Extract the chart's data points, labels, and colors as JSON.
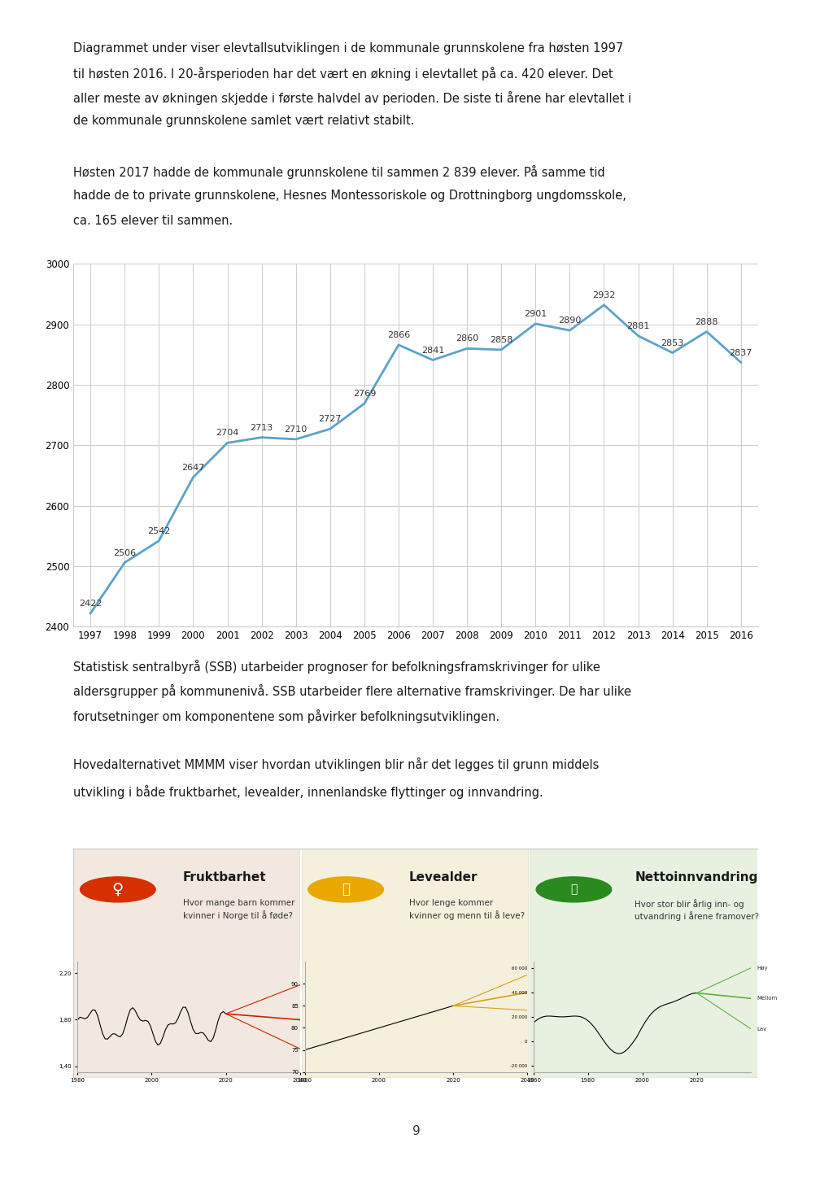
{
  "years": [
    1997,
    1998,
    1999,
    2000,
    2001,
    2002,
    2003,
    2004,
    2005,
    2006,
    2007,
    2008,
    2009,
    2010,
    2011,
    2012,
    2013,
    2014,
    2015,
    2016
  ],
  "values": [
    2422,
    2506,
    2542,
    2647,
    2704,
    2713,
    2710,
    2727,
    2769,
    2866,
    2841,
    2860,
    2858,
    2901,
    2890,
    2932,
    2881,
    2853,
    2888,
    2837
  ],
  "line_color": "#5BA3C9",
  "ylim_min": 2400,
  "ylim_max": 3000,
  "yticks": [
    2400,
    2500,
    2600,
    2700,
    2800,
    2900,
    3000
  ],
  "bg_color": "#ffffff",
  "grid_color": "#cccccc",
  "text_para1_line1": "Diagrammet under viser elevtallsutviklingen i de kommunale grunnskolene fra høsten 1997",
  "text_para1_line2": "til høsten 2016. I 20-årsperioden har det vært en økning i elevtallet på ca. 420 elever. Det",
  "text_para1_line3": "aller meste av økningen skjedde i første halvdel av perioden. De siste ti årene har elevtallet i",
  "text_para1_line4": "de kommunale grunnskolene samlet vært relativt stabilt.",
  "text_para2_line1": "Høsten 2017 hadde de kommunale grunnskolene til sammen 2 839 elever. På samme tid",
  "text_para2_line2": "hadde de to private grunnskolene, Hesnes Montessoriskole og Drottningborg ungdomsskole,",
  "text_para2_line3": "ca. 165 elever til sammen.",
  "text_para3_line1": "Statistisk sentralbyrå (SSB) utarbeider prognoser for befolkningsframskrivinger for ulike",
  "text_para3_line2": "aldersgrupper på kommunenivå. SSB utarbeider flere alternative framskrivinger. De har ulike",
  "text_para3_line3": "forutsetninger om komponentene som påvirker befolkningsutviklingen.",
  "text_para4_line1": "Hovedalternativet MMMM viser hvordan utviklingen blir når det legges til grunn middels",
  "text_para4_line2": "utvikling i både fruktbarhet, levealder, innenlandske flyttinger og innvandring.",
  "page_number": "9",
  "annotation_fontsize": 8.0,
  "axis_label_fontsize": 8.5,
  "body_fontsize": 10.5
}
